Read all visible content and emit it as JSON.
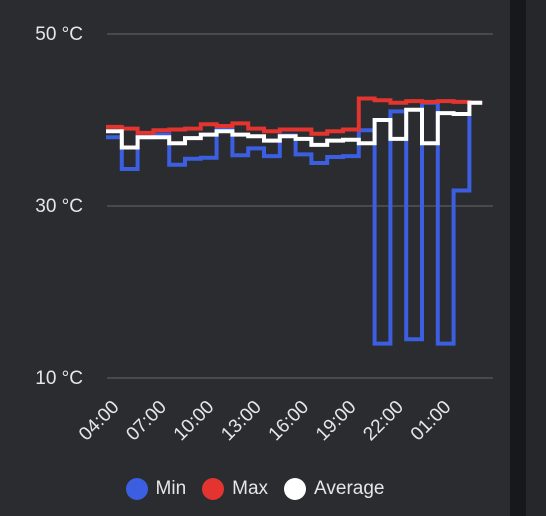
{
  "chart_data": {
    "type": "line",
    "step": true,
    "y_unit": "°C",
    "ylim": [
      10,
      50
    ],
    "yticks": [
      "50 °C",
      "30 °C",
      "10 °C"
    ],
    "ytick_values": [
      50,
      30,
      10
    ],
    "xticks": [
      "04:00",
      "07:00",
      "10:00",
      "13:00",
      "16:00",
      "19:00",
      "22:00",
      "01:00"
    ],
    "xtick_index": [
      0,
      3,
      6,
      9,
      12,
      15,
      18,
      21
    ],
    "x": [
      "04:00",
      "05:00",
      "06:00",
      "07:00",
      "08:00",
      "09:00",
      "10:00",
      "11:00",
      "12:00",
      "13:00",
      "14:00",
      "15:00",
      "16:00",
      "17:00",
      "18:00",
      "19:00",
      "20:00",
      "21:00",
      "22:00",
      "23:00",
      "00:00",
      "01:00",
      "02:00",
      "03:00"
    ],
    "grid": true,
    "legend": "bottom-center",
    "series": [
      {
        "name": "Min",
        "color": "#3b5fe0",
        "values": [
          38.0,
          34.3,
          38.0,
          38.3,
          34.8,
          35.5,
          35.6,
          39.0,
          35.9,
          36.7,
          35.8,
          38.2,
          36.0,
          35.0,
          35.7,
          35.8,
          38.8,
          14.0,
          41.0,
          14.5,
          42.0,
          14.0,
          31.8,
          42.0
        ]
      },
      {
        "name": "Max",
        "color": "#e3342f",
        "values": [
          39.2,
          39.0,
          38.5,
          38.8,
          38.9,
          39.0,
          39.5,
          39.3,
          39.6,
          39.0,
          38.7,
          38.9,
          38.9,
          38.4,
          38.7,
          38.9,
          42.5,
          42.3,
          42.0,
          42.2,
          42.1,
          42.2,
          42.1,
          42.0
        ]
      },
      {
        "name": "Average",
        "color": "#ffffff",
        "values": [
          38.7,
          36.8,
          38.0,
          38.0,
          37.3,
          37.9,
          38.3,
          38.7,
          38.3,
          38.1,
          37.6,
          38.1,
          37.8,
          37.1,
          37.6,
          37.7,
          37.3,
          40.0,
          37.8,
          41.2,
          37.3,
          40.8,
          40.7,
          42.0
        ]
      }
    ]
  }
}
